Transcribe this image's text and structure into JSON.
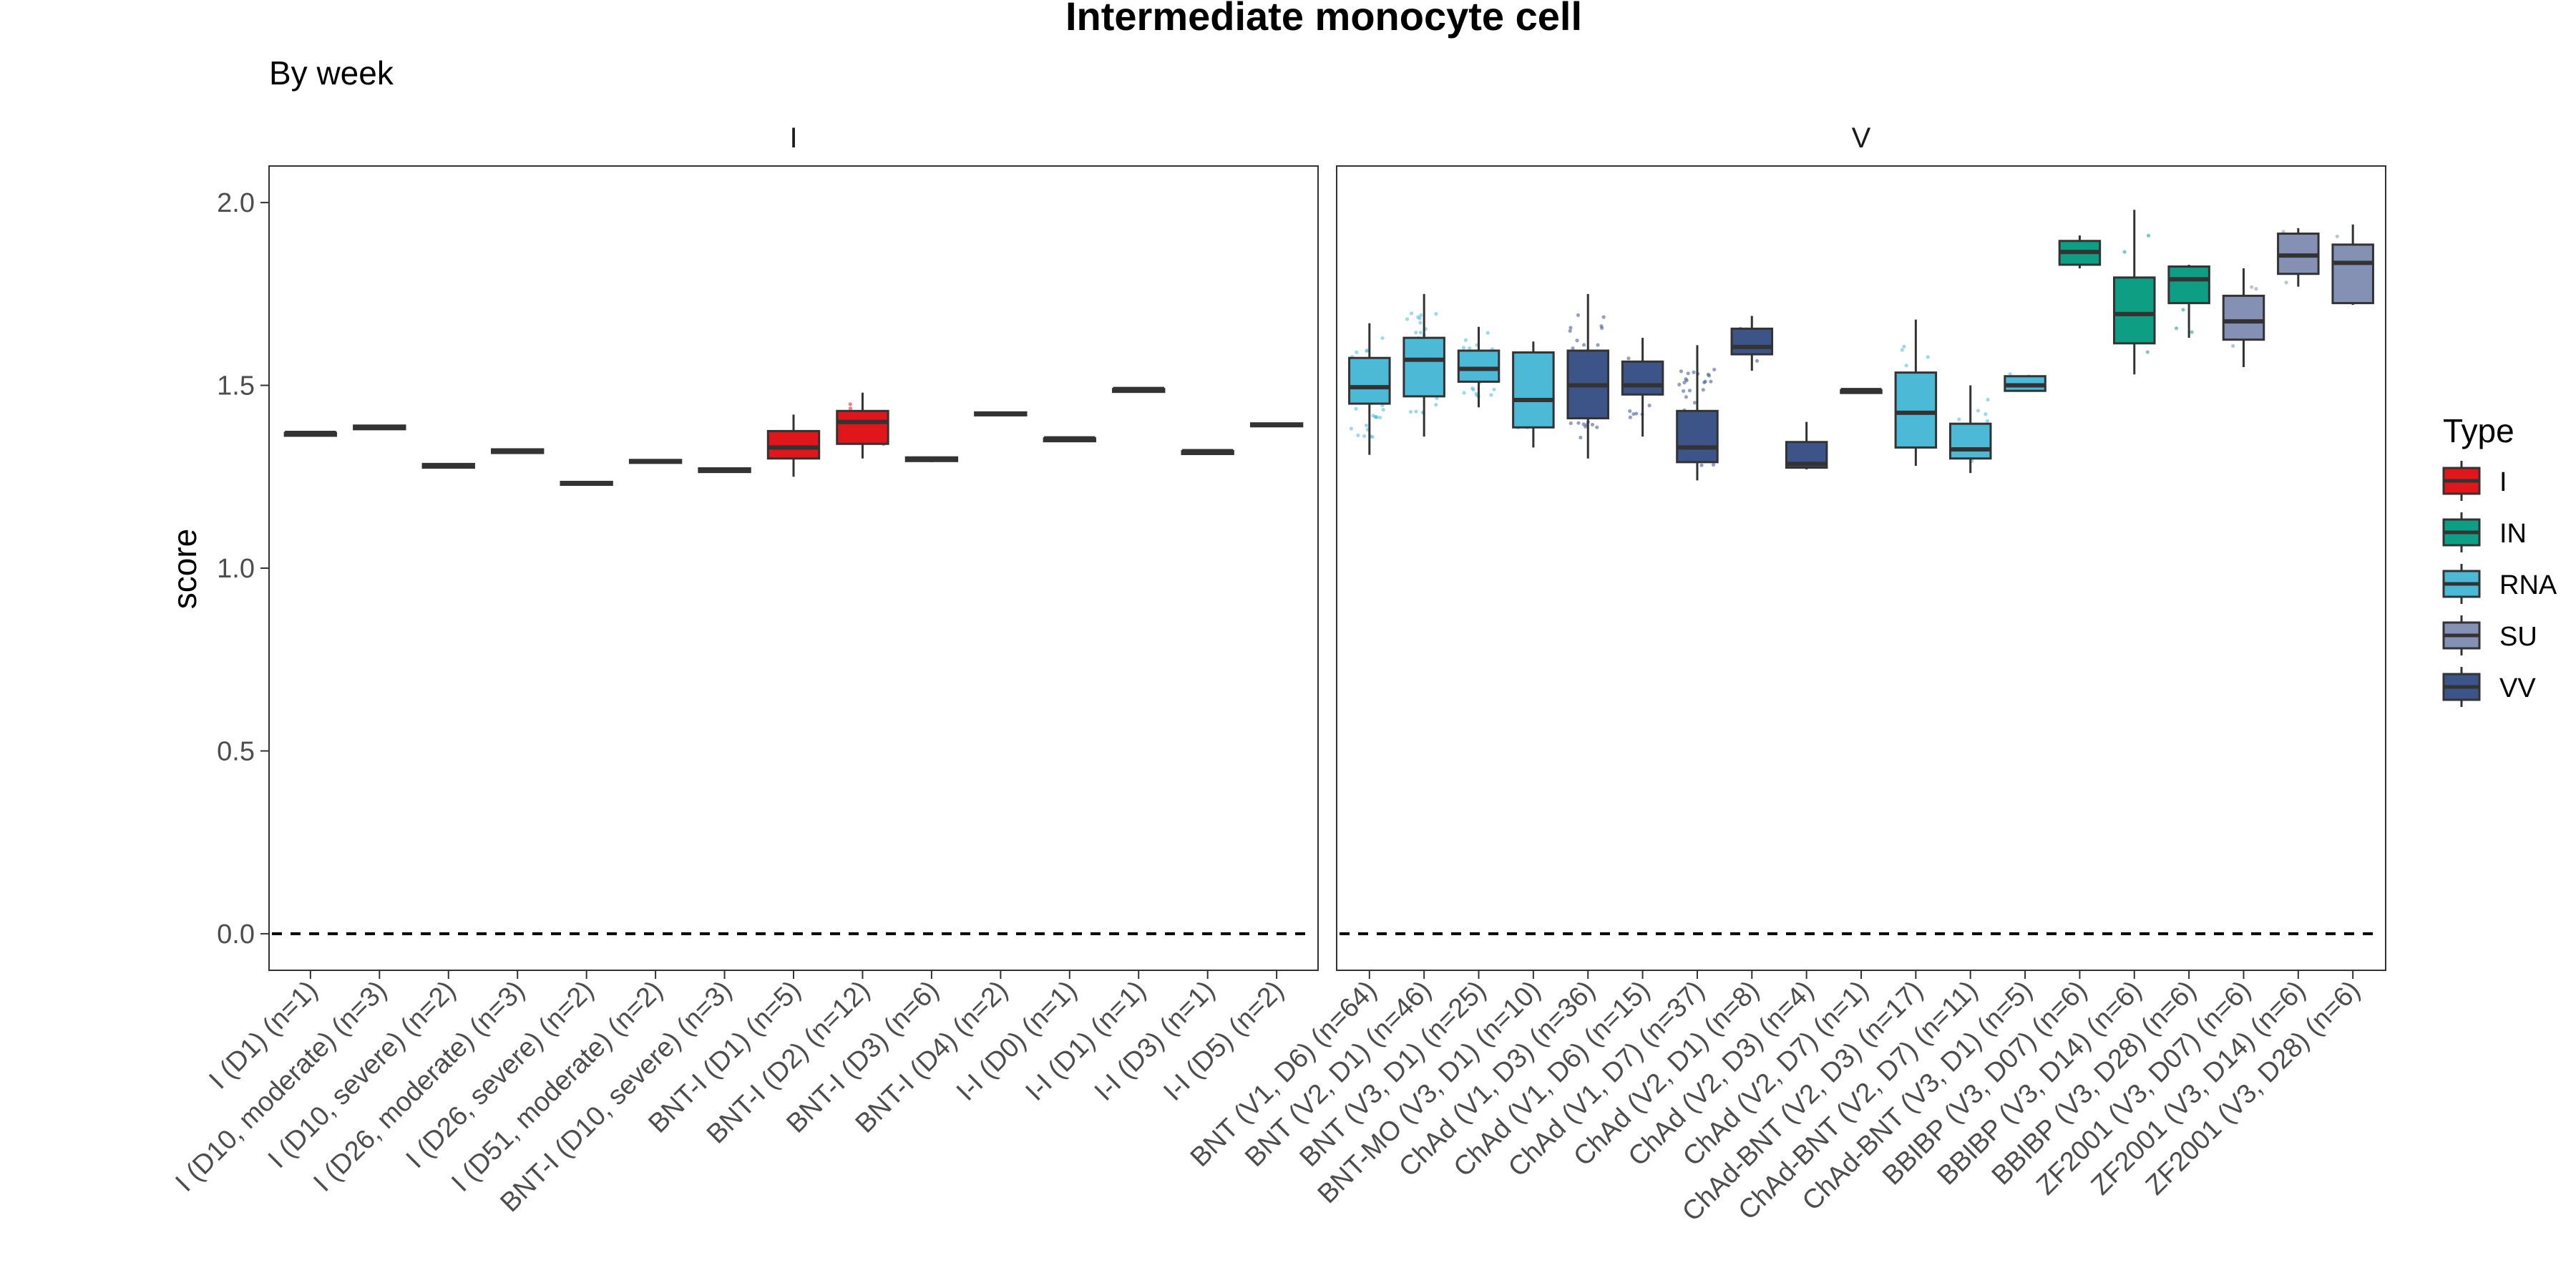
{
  "chart_data": {
    "type": "boxplot",
    "title": "Intermediate monocyte cell",
    "subtitle": "By week",
    "ylabel": "score",
    "ylim": [
      -0.1,
      2.1
    ],
    "yticks": [
      "0.0",
      "0.5",
      "1.0",
      "1.5",
      "2.0"
    ],
    "ytick_values": [
      0,
      0.5,
      1.0,
      1.5,
      2.0
    ],
    "reference_line": 0,
    "legend": {
      "title": "Type",
      "placement": "right",
      "items": [
        {
          "label": "I",
          "color": "#E0161B"
        },
        {
          "label": "IN",
          "color": "#0E9E83"
        },
        {
          "label": "RNA",
          "color": "#4CBAD6"
        },
        {
          "label": "SU",
          "color": "#8491B4"
        },
        {
          "label": "VV",
          "color": "#3C5488"
        }
      ]
    },
    "panels": [
      {
        "label": "I",
        "groups": [
          {
            "label": "I (D1) (n=1)",
            "type": "I",
            "q1": 1.37,
            "median": 1.37,
            "q3": 1.37,
            "lo": 1.37,
            "hi": 1.37
          },
          {
            "label": "I (D10, moderate) (n=3)",
            "type": "I",
            "q1": 1.38,
            "median": 1.385,
            "q3": 1.39,
            "lo": 1.38,
            "hi": 1.39
          },
          {
            "label": "I (D10, severe) (n=2)",
            "type": "I",
            "q1": 1.275,
            "median": 1.28,
            "q3": 1.285,
            "lo": 1.275,
            "hi": 1.285
          },
          {
            "label": "I (D26, moderate) (n=3)",
            "type": "I",
            "q1": 1.315,
            "median": 1.32,
            "q3": 1.325,
            "lo": 1.315,
            "hi": 1.325
          },
          {
            "label": "I (D26, severe) (n=2)",
            "type": "I",
            "q1": 1.228,
            "median": 1.232,
            "q3": 1.236,
            "lo": 1.228,
            "hi": 1.236
          },
          {
            "label": "I (D51, moderate) (n=2)",
            "type": "I",
            "q1": 1.288,
            "median": 1.292,
            "q3": 1.296,
            "lo": 1.288,
            "hi": 1.296
          },
          {
            "label": "BNT-I (D10, severe) (n=3)",
            "type": "I",
            "q1": 1.263,
            "median": 1.268,
            "q3": 1.273,
            "lo": 1.263,
            "hi": 1.273
          },
          {
            "label": "BNT-I (D1) (n=5)",
            "type": "I",
            "q1": 1.3,
            "median": 1.33,
            "q3": 1.375,
            "lo": 1.25,
            "hi": 1.42
          },
          {
            "label": "BNT-I (D2) (n=12)",
            "type": "I",
            "q1": 1.34,
            "median": 1.4,
            "q3": 1.43,
            "lo": 1.3,
            "hi": 1.48
          },
          {
            "label": "BNT-I (D3) (n=6)",
            "type": "I",
            "q1": 1.293,
            "median": 1.298,
            "q3": 1.303,
            "lo": 1.29,
            "hi": 1.305
          },
          {
            "label": "BNT-I (D4) (n=2)",
            "type": "I",
            "q1": 1.418,
            "median": 1.422,
            "q3": 1.426,
            "lo": 1.418,
            "hi": 1.426
          },
          {
            "label": "I-I (D0) (n=1)",
            "type": "I",
            "q1": 1.355,
            "median": 1.355,
            "q3": 1.355,
            "lo": 1.355,
            "hi": 1.355
          },
          {
            "label": "I-I (D1) (n=1)",
            "type": "I",
            "q1": 1.49,
            "median": 1.49,
            "q3": 1.49,
            "lo": 1.49,
            "hi": 1.49
          },
          {
            "label": "I-I (D3) (n=1)",
            "type": "I",
            "q1": 1.32,
            "median": 1.32,
            "q3": 1.32,
            "lo": 1.32,
            "hi": 1.32
          },
          {
            "label": "I-I (D5) (n=2)",
            "type": "I",
            "q1": 1.388,
            "median": 1.392,
            "q3": 1.396,
            "lo": 1.388,
            "hi": 1.396
          }
        ]
      },
      {
        "label": "V",
        "groups": [
          {
            "label": "BNT (V1, D6) (n=64)",
            "type": "RNA",
            "q1": 1.45,
            "median": 1.495,
            "q3": 1.575,
            "lo": 1.31,
            "hi": 1.67
          },
          {
            "label": "BNT (V2, D1) (n=46)",
            "type": "RNA",
            "q1": 1.47,
            "median": 1.57,
            "q3": 1.63,
            "lo": 1.36,
            "hi": 1.75
          },
          {
            "label": "BNT (V3, D1) (n=25)",
            "type": "RNA",
            "q1": 1.51,
            "median": 1.545,
            "q3": 1.595,
            "lo": 1.44,
            "hi": 1.66
          },
          {
            "label": "BNT-MO (V3, D1) (n=10)",
            "type": "RNA",
            "q1": 1.385,
            "median": 1.46,
            "q3": 1.59,
            "lo": 1.33,
            "hi": 1.62
          },
          {
            "label": "ChAd (V1, D3) (n=36)",
            "type": "VV",
            "q1": 1.41,
            "median": 1.5,
            "q3": 1.595,
            "lo": 1.3,
            "hi": 1.75
          },
          {
            "label": "ChAd (V1, D6) (n=15)",
            "type": "VV",
            "q1": 1.475,
            "median": 1.5,
            "q3": 1.565,
            "lo": 1.36,
            "hi": 1.63
          },
          {
            "label": "ChAd (V1, D7) (n=37)",
            "type": "VV",
            "q1": 1.29,
            "median": 1.33,
            "q3": 1.43,
            "lo": 1.24,
            "hi": 1.61
          },
          {
            "label": "ChAd (V2, D1) (n=8)",
            "type": "VV",
            "q1": 1.585,
            "median": 1.605,
            "q3": 1.655,
            "lo": 1.54,
            "hi": 1.69
          },
          {
            "label": "ChAd (V2, D3) (n=4)",
            "type": "VV",
            "q1": 1.275,
            "median": 1.285,
            "q3": 1.345,
            "lo": 1.27,
            "hi": 1.4
          },
          {
            "label": "ChAd (V2, D7) (n=1)",
            "type": "VV",
            "q1": 1.487,
            "median": 1.487,
            "q3": 1.487,
            "lo": 1.487,
            "hi": 1.487
          },
          {
            "label": "ChAd-BNT (V2, D3) (n=17)",
            "type": "RNA",
            "q1": 1.33,
            "median": 1.425,
            "q3": 1.535,
            "lo": 1.28,
            "hi": 1.68
          },
          {
            "label": "ChAd-BNT (V2, D7) (n=11)",
            "type": "RNA",
            "q1": 1.3,
            "median": 1.325,
            "q3": 1.395,
            "lo": 1.26,
            "hi": 1.5
          },
          {
            "label": "ChAd-BNT (V3, D1) (n=5)",
            "type": "RNA",
            "q1": 1.485,
            "median": 1.5,
            "q3": 1.525,
            "lo": 1.485,
            "hi": 1.525
          },
          {
            "label": "BBIBP (V3, D07) (n=6)",
            "type": "IN",
            "q1": 1.83,
            "median": 1.865,
            "q3": 1.895,
            "lo": 1.82,
            "hi": 1.91
          },
          {
            "label": "BBIBP (V3, D14) (n=6)",
            "type": "IN",
            "q1": 1.615,
            "median": 1.695,
            "q3": 1.795,
            "lo": 1.53,
            "hi": 1.98
          },
          {
            "label": "BBIBP (V3, D28) (n=6)",
            "type": "IN",
            "q1": 1.725,
            "median": 1.79,
            "q3": 1.825,
            "lo": 1.63,
            "hi": 1.83
          },
          {
            "label": "ZF2001 (V3, D07) (n=6)",
            "type": "SU",
            "q1": 1.625,
            "median": 1.675,
            "q3": 1.745,
            "lo": 1.55,
            "hi": 1.82
          },
          {
            "label": "ZF2001 (V3, D14) (n=6)",
            "type": "SU",
            "q1": 1.805,
            "median": 1.855,
            "q3": 1.915,
            "lo": 1.77,
            "hi": 1.93
          },
          {
            "label": "ZF2001 (V3, D28) (n=6)",
            "type": "SU",
            "q1": 1.725,
            "median": 1.835,
            "q3": 1.885,
            "lo": 1.72,
            "hi": 1.94
          }
        ]
      }
    ]
  }
}
